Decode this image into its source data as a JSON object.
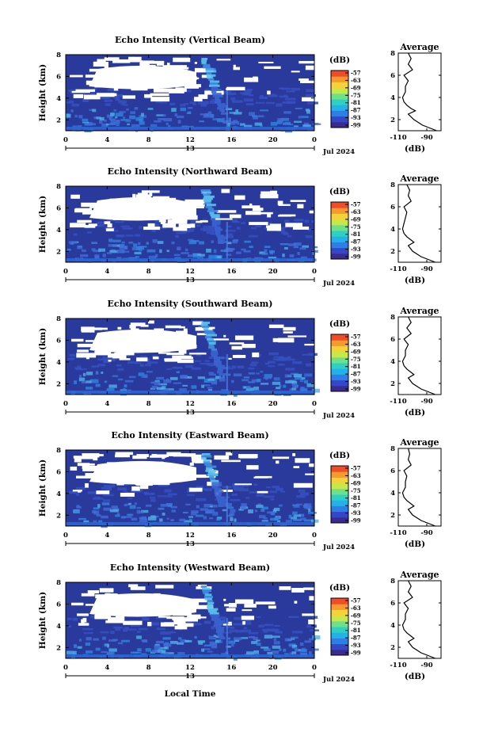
{
  "figure": {
    "date_label": "Jul 2024",
    "x_axis_title": "Local Time",
    "avg_title": "Average",
    "avg_xlabel": "(dB)",
    "colorbar_unit": "(dB)"
  },
  "colorbar": {
    "labels": [
      "-57",
      "-63",
      "-69",
      "-75",
      "-81",
      "-87",
      "-93",
      "-99"
    ],
    "colors": [
      "#3b2b8f",
      "#3447c8",
      "#2f7ee6",
      "#24b0e8",
      "#2fd0c4",
      "#6fe08a",
      "#c8e84a",
      "#f5d23a",
      "#f79a2e",
      "#ef4d2a"
    ]
  },
  "chart_data": [
    {
      "type": "heatmap",
      "title": "Echo Intensity (Vertical Beam)",
      "ylabel": "Height (km)",
      "x_ticks": [
        "0",
        "4",
        "8",
        "12",
        "16",
        "20",
        "0"
      ],
      "x_range_hours": [
        0,
        24
      ],
      "day_label": "13",
      "y_ticks": [
        "2",
        "4",
        "6",
        "8"
      ],
      "y_range_km": [
        1,
        8
      ],
      "z_range_db": [
        -99,
        -57
      ],
      "average_profile": {
        "title": "Average",
        "xlabel": "(dB)",
        "x_ticks": [
          "-110",
          "-90"
        ],
        "x_range": [
          -110,
          -80
        ],
        "heights_km": [
          1,
          1.5,
          2,
          2.5,
          2.8,
          3,
          3.3,
          3.6,
          4,
          4.5,
          5,
          5.5,
          6,
          6.5,
          7,
          7.5,
          8
        ],
        "values_db": [
          -83,
          -93,
          -99,
          -103,
          -98,
          -101,
          -104,
          -106,
          -107,
          -105,
          -105,
          -103,
          -106,
          -100,
          -103,
          -101,
          -103
        ]
      }
    },
    {
      "type": "heatmap",
      "title": "Echo Intensity (Northward Beam)",
      "ylabel": "Height (km)",
      "x_ticks": [
        "0",
        "4",
        "8",
        "12",
        "16",
        "20",
        "0"
      ],
      "x_range_hours": [
        0,
        24
      ],
      "day_label": "13",
      "y_ticks": [
        "2",
        "4",
        "6",
        "8"
      ],
      "y_range_km": [
        1,
        8
      ],
      "z_range_db": [
        -99,
        -57
      ],
      "average_profile": {
        "title": "Average",
        "xlabel": "(dB)",
        "x_ticks": [
          "-110",
          "-90"
        ],
        "x_range": [
          -110,
          -80
        ],
        "heights_km": [
          1,
          1.5,
          2,
          2.5,
          2.8,
          3,
          3.3,
          3.6,
          4,
          4.5,
          5,
          5.5,
          6,
          6.5,
          7,
          7.5,
          8
        ],
        "values_db": [
          -84,
          -94,
          -100,
          -103,
          -99,
          -101,
          -104,
          -106,
          -107,
          -106,
          -105,
          -104,
          -106,
          -101,
          -103,
          -102,
          -104
        ]
      }
    },
    {
      "type": "heatmap",
      "title": "Echo Intensity (Southward Beam)",
      "ylabel": "Height (km)",
      "x_ticks": [
        "0",
        "4",
        "8",
        "12",
        "16",
        "20",
        "0"
      ],
      "x_range_hours": [
        0,
        24
      ],
      "day_label": "13",
      "y_ticks": [
        "2",
        "4",
        "6",
        "8"
      ],
      "y_range_km": [
        1,
        8
      ],
      "z_range_db": [
        -99,
        -57
      ],
      "average_profile": {
        "title": "Average",
        "xlabel": "(dB)",
        "x_ticks": [
          "-110",
          "-90"
        ],
        "x_range": [
          -110,
          -80
        ],
        "heights_km": [
          1,
          1.5,
          2,
          2.5,
          2.8,
          3,
          3.3,
          3.6,
          4,
          4.5,
          5,
          5.5,
          6,
          6.5,
          7,
          7.5,
          8
        ],
        "values_db": [
          -84,
          -94,
          -100,
          -103,
          -99,
          -101,
          -104,
          -106,
          -107,
          -105,
          -105,
          -103,
          -106,
          -101,
          -104,
          -101,
          -103
        ]
      }
    },
    {
      "type": "heatmap",
      "title": "Echo Intensity (Eastward Beam)",
      "ylabel": "Height (km)",
      "x_ticks": [
        "0",
        "4",
        "8",
        "12",
        "16",
        "20",
        "0"
      ],
      "x_range_hours": [
        0,
        24
      ],
      "day_label": "13",
      "y_ticks": [
        "2",
        "4",
        "6",
        "8"
      ],
      "y_range_km": [
        1,
        8
      ],
      "z_range_db": [
        -99,
        -57
      ],
      "average_profile": {
        "title": "Average",
        "xlabel": "(dB)",
        "x_ticks": [
          "-110",
          "-90"
        ],
        "x_range": [
          -110,
          -80
        ],
        "heights_km": [
          1,
          1.5,
          2,
          2.5,
          2.8,
          3,
          3.3,
          3.6,
          4,
          4.5,
          5,
          5.5,
          6,
          6.5,
          7,
          7.5,
          8
        ],
        "values_db": [
          -84,
          -94,
          -100,
          -103,
          -99,
          -101,
          -104,
          -106,
          -107,
          -105,
          -105,
          -104,
          -106,
          -101,
          -103,
          -102,
          -103
        ]
      }
    },
    {
      "type": "heatmap",
      "title": "Echo Intensity (Westward Beam)",
      "ylabel": "Height (km)",
      "x_ticks": [
        "0",
        "4",
        "8",
        "12",
        "16",
        "20",
        "0"
      ],
      "x_range_hours": [
        0,
        24
      ],
      "day_label": "13",
      "y_ticks": [
        "2",
        "4",
        "6",
        "8"
      ],
      "y_range_km": [
        1,
        8
      ],
      "z_range_db": [
        -99,
        -57
      ],
      "average_profile": {
        "title": "Average",
        "xlabel": "(dB)",
        "x_ticks": [
          "-110",
          "-90"
        ],
        "x_range": [
          -110,
          -80
        ],
        "heights_km": [
          1,
          1.5,
          2,
          2.5,
          2.8,
          3,
          3.3,
          3.6,
          4,
          4.5,
          5,
          5.5,
          6,
          6.5,
          7,
          7.5,
          8
        ],
        "values_db": [
          -84,
          -94,
          -100,
          -103,
          -99,
          -101,
          -104,
          -106,
          -107,
          -105,
          -105,
          -103,
          -106,
          -100,
          -103,
          -101,
          -103
        ]
      }
    }
  ]
}
